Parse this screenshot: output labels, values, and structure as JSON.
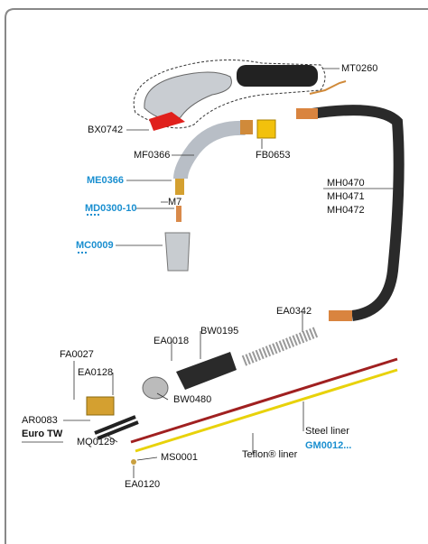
{
  "labels": {
    "mt0260": "MT0260",
    "bx0742": "BX0742",
    "mf0366": "MF0366",
    "fb0653": "FB0653",
    "me0366": "ME0366",
    "m7": "M7",
    "md0300": "MD0300-10",
    "mc0009": "MC0009",
    "mh0470": "MH0470",
    "mh0471": "MH0471",
    "mh0472": "MH0472",
    "ea0342": "EA0342",
    "ea0018": "EA0018",
    "bw0195": "BW0195",
    "fa0027": "FA0027",
    "ea0128": "EA0128",
    "bw0480": "BW0480",
    "ar0083": "AR0083",
    "euro_tw": "Euro TW",
    "mq0129": "MQ0129",
    "steel_liner": "Steel liner",
    "gm0012": "GM0012...",
    "teflon_liner": "Teflon® liner",
    "ms0001": "MS0001",
    "ea0120": "EA0120"
  }
}
